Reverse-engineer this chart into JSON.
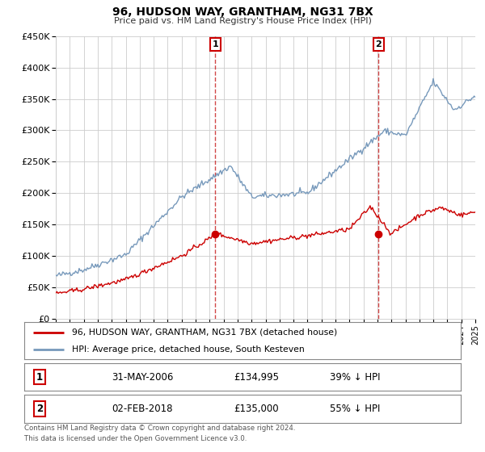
{
  "title": "96, HUDSON WAY, GRANTHAM, NG31 7BX",
  "subtitle": "Price paid vs. HM Land Registry's House Price Index (HPI)",
  "bg_color": "#ffffff",
  "plot_bg_color": "#ffffff",
  "grid_color": "#dddddd",
  "red_line_color": "#cc0000",
  "blue_line_color": "#7799bb",
  "vline_color": "#cc0000",
  "marker_color": "#cc0000",
  "sale1_year": 2006.41,
  "sale1_price": 134995,
  "sale1_label": "1",
  "sale1_date": "31-MAY-2006",
  "sale1_pct": "39%",
  "sale2_year": 2018.09,
  "sale2_price": 135000,
  "sale2_label": "2",
  "sale2_date": "02-FEB-2018",
  "sale2_pct": "55%",
  "xmin": 1995,
  "xmax": 2025,
  "ymin": 0,
  "ymax": 450000,
  "yticks": [
    0,
    50000,
    100000,
    150000,
    200000,
    250000,
    300000,
    350000,
    400000,
    450000
  ],
  "legend_label_red": "96, HUDSON WAY, GRANTHAM, NG31 7BX (detached house)",
  "legend_label_blue": "HPI: Average price, detached house, South Kesteven",
  "footer1": "Contains HM Land Registry data © Crown copyright and database right 2024.",
  "footer2": "This data is licensed under the Open Government Licence v3.0."
}
